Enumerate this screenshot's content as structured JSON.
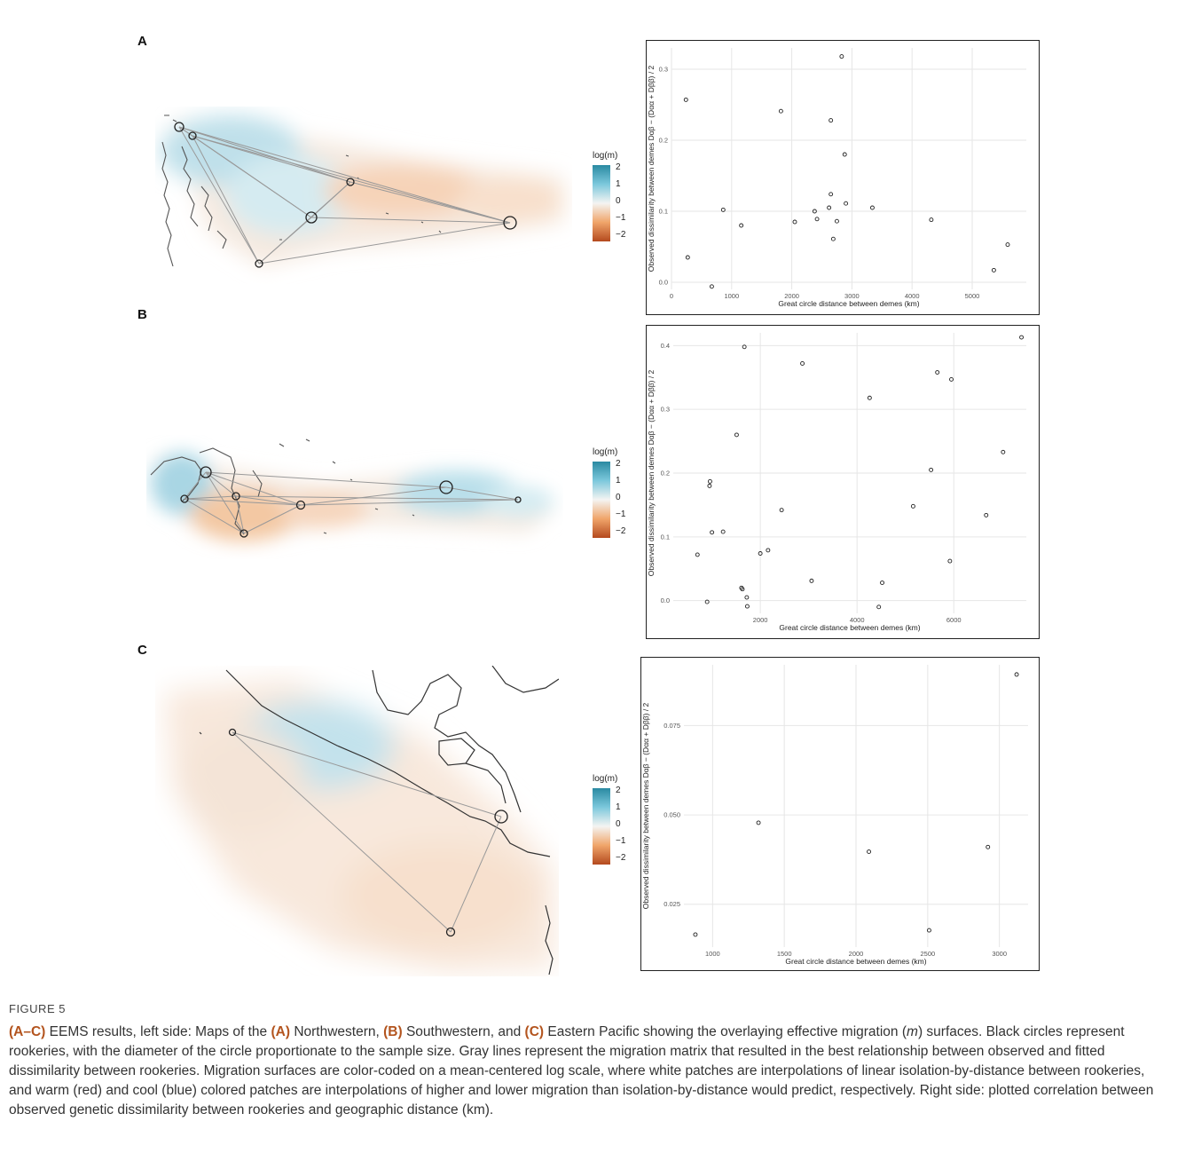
{
  "panels": [
    {
      "letter": "A",
      "legend": {
        "title": "log(m)",
        "ticks": [
          "2",
          "1",
          "0",
          "−1",
          "−2"
        ]
      },
      "chart_data": {
        "type": "scatter",
        "xlabel": "Great circle distance between demes (km)",
        "ylabel": "Observed dissimilarity between demes Dαβ − (Dαα + Dββ) / 2",
        "xlim": [
          0,
          5900
        ],
        "ylim": [
          -0.01,
          0.33
        ],
        "xticks": [
          0,
          1000,
          2000,
          3000,
          4000,
          5000
        ],
        "xtick_labels": [
          "0",
          "1000",
          "2000",
          "3000",
          "4000",
          "5000"
        ],
        "yticks": [
          0.0,
          0.1,
          0.2,
          0.3
        ],
        "ytick_labels": [
          "0.0",
          "0.1",
          "0.2",
          "0.3"
        ],
        "grid": true,
        "points": [
          [
            240,
            0.257
          ],
          [
            270,
            0.035
          ],
          [
            670,
            -0.006
          ],
          [
            860,
            0.102
          ],
          [
            1160,
            0.08
          ],
          [
            1820,
            0.241
          ],
          [
            2050,
            0.085
          ],
          [
            2380,
            0.1
          ],
          [
            2420,
            0.089
          ],
          [
            2620,
            0.105
          ],
          [
            2650,
            0.124
          ],
          [
            2650,
            0.228
          ],
          [
            2690,
            0.061
          ],
          [
            2750,
            0.086
          ],
          [
            2830,
            0.318
          ],
          [
            2880,
            0.18
          ],
          [
            2900,
            0.111
          ],
          [
            3340,
            0.105
          ],
          [
            4320,
            0.088
          ],
          [
            5360,
            0.017
          ],
          [
            5590,
            0.053
          ]
        ]
      }
    },
    {
      "letter": "B",
      "legend": {
        "title": "log(m)",
        "ticks": [
          "2",
          "1",
          "0",
          "−1",
          "−2"
        ]
      },
      "chart_data": {
        "type": "scatter",
        "xlabel": "Great circle distance between demes (km)",
        "ylabel": "Observed dissimilarity between demes Dαβ − (Dαα + Dββ) / 2",
        "xlim": [
          200,
          7500
        ],
        "ylim": [
          -0.02,
          0.42
        ],
        "xticks": [
          2000,
          4000,
          6000
        ],
        "xtick_labels": [
          "2000",
          "4000",
          "6000"
        ],
        "yticks": [
          0.0,
          0.1,
          0.2,
          0.3,
          0.4
        ],
        "ytick_labels": [
          "0.0",
          "0.1",
          "0.2",
          "0.3",
          "0.4"
        ],
        "grid": true,
        "points": [
          [
            700,
            0.072
          ],
          [
            900,
            -0.002
          ],
          [
            950,
            0.18
          ],
          [
            960,
            0.187
          ],
          [
            1000,
            0.107
          ],
          [
            1230,
            0.108
          ],
          [
            1510,
            0.26
          ],
          [
            1610,
            0.02
          ],
          [
            1630,
            0.018
          ],
          [
            1670,
            0.398
          ],
          [
            1720,
            0.005
          ],
          [
            1730,
            -0.009
          ],
          [
            2000,
            0.074
          ],
          [
            2160,
            0.079
          ],
          [
            2440,
            0.142
          ],
          [
            2870,
            0.372
          ],
          [
            3060,
            0.031
          ],
          [
            4260,
            0.318
          ],
          [
            4450,
            -0.01
          ],
          [
            4520,
            0.028
          ],
          [
            5160,
            0.148
          ],
          [
            5530,
            0.205
          ],
          [
            5660,
            0.358
          ],
          [
            5920,
            0.062
          ],
          [
            5950,
            0.347
          ],
          [
            6670,
            0.134
          ],
          [
            7020,
            0.233
          ],
          [
            7400,
            0.413
          ]
        ]
      }
    },
    {
      "letter": "C",
      "legend": {
        "title": "log(m)",
        "ticks": [
          "2",
          "1",
          "0",
          "−1",
          "−2"
        ]
      },
      "chart_data": {
        "type": "scatter",
        "xlabel": "Great circle distance between demes (km)",
        "ylabel": "Observed dissimilarity between demes Dαβ − (Dαα + Dββ) / 2",
        "xlim": [
          800,
          3200
        ],
        "ylim": [
          0.013,
          0.092
        ],
        "xticks": [
          1000,
          1500,
          2000,
          2500,
          3000
        ],
        "xtick_labels": [
          "1000",
          "1500",
          "2000",
          "2500",
          "3000"
        ],
        "yticks": [
          0.025,
          0.05,
          0.075
        ],
        "ytick_labels": [
          "0.025",
          "0.050",
          "0.075"
        ],
        "grid": true,
        "points": [
          [
            880,
            0.0165
          ],
          [
            1320,
            0.0478
          ],
          [
            2090,
            0.0397
          ],
          [
            2510,
            0.0177
          ],
          [
            2920,
            0.041
          ],
          [
            3120,
            0.0893
          ]
        ]
      }
    }
  ],
  "caption": {
    "figure_label": "FIGURE 5",
    "range": "(A–C)",
    "t1": " EEMS results, left side: Maps of the ",
    "a": "(A)",
    "t2": " Northwestern, ",
    "b": "(B)",
    "t3": " Southwestern, and ",
    "c": "(C)",
    "t4": " Eastern Pacific showing the overlaying effective migration (",
    "m": "m",
    "t5": ") surfaces. Black circles represent rookeries, with the diameter of the circle proportionate to the sample size. Gray lines represent the migration matrix that resulted in the best relationship between observed and fitted dissimilarity between rookeries. Migration surfaces are color-coded on a mean-centered log scale, where white patches are interpolations of linear isolation-by-distance between rookeries, and warm (red) and cool (blue) colored patches are interpolations of higher and lower migration than isolation-by-distance would predict, respectively. Right side: plotted correlation between observed genetic dissimilarity between rookeries and geographic distance (km)."
  }
}
